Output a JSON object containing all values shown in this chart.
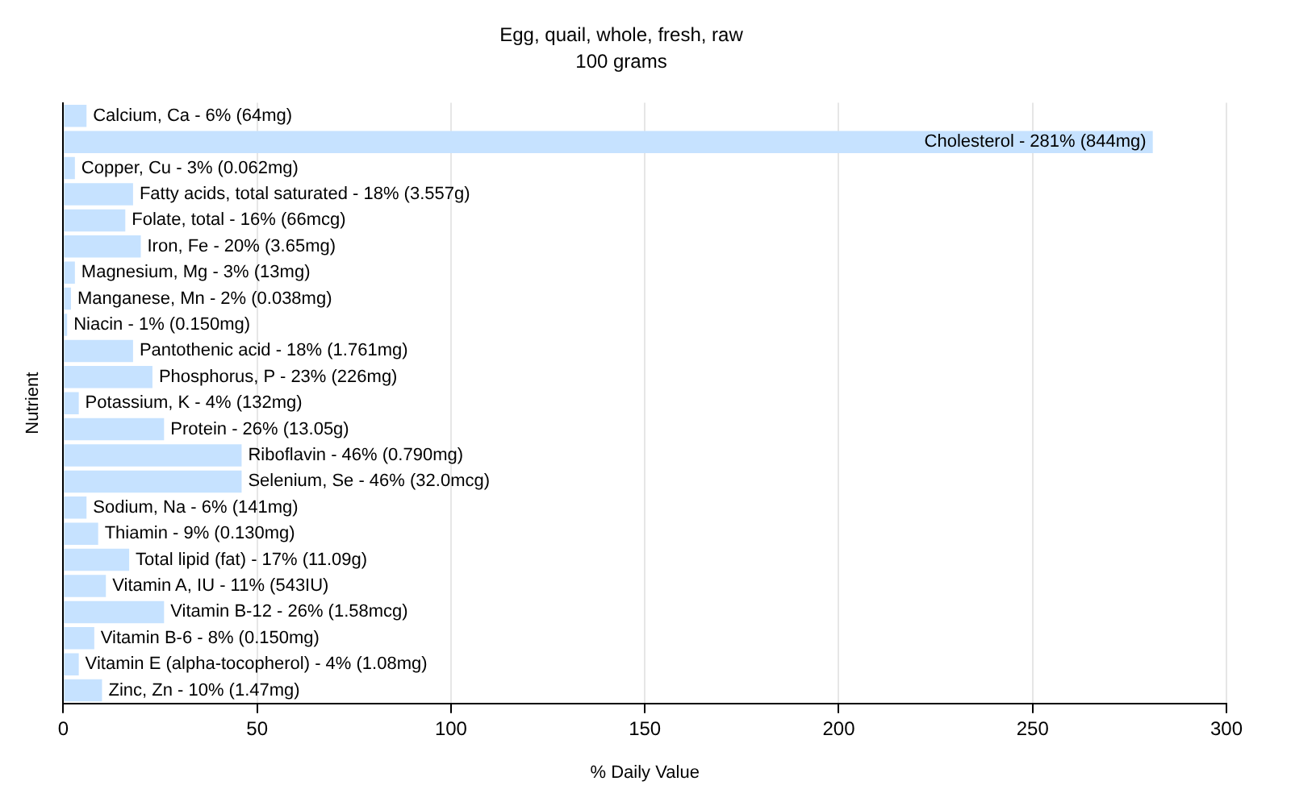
{
  "chart_data": {
    "type": "bar",
    "orientation": "horizontal",
    "title": "Egg, quail, whole, fresh, raw",
    "subtitle": "100 grams",
    "xlabel": "% Daily Value",
    "ylabel": "Nutrient",
    "categories": [
      "Calcium, Ca - 6% (64mg)",
      "Cholesterol - 281% (844mg)",
      "Copper, Cu - 3% (0.062mg)",
      "Fatty acids, total saturated - 18% (3.557g)",
      "Folate, total - 16% (66mcg)",
      "Iron, Fe - 20% (3.65mg)",
      "Magnesium, Mg - 3% (13mg)",
      "Manganese, Mn - 2% (0.038mg)",
      "Niacin - 1% (0.150mg)",
      "Pantothenic acid - 18% (1.761mg)",
      "Phosphorus, P - 23% (226mg)",
      "Potassium, K - 4% (132mg)",
      "Protein - 26% (13.05g)",
      "Riboflavin - 46% (0.790mg)",
      "Selenium, Se - 46% (32.0mcg)",
      "Sodium, Na - 6% (141mg)",
      "Thiamin - 9% (0.130mg)",
      "Total lipid (fat) - 17% (11.09g)",
      "Vitamin A, IU - 11% (543IU)",
      "Vitamin B-12 - 26% (1.58mcg)",
      "Vitamin B-6 - 8% (0.150mg)",
      "Vitamin E (alpha-tocopherol) - 4% (1.08mg)",
      "Zinc, Zn - 10% (1.47mg)"
    ],
    "values": [
      6,
      281,
      3,
      18,
      16,
      20,
      3,
      2,
      1,
      18,
      23,
      4,
      26,
      46,
      46,
      6,
      9,
      17,
      11,
      26,
      8,
      4,
      10
    ],
    "color": "#c6e2ff",
    "xlim": [
      0,
      300
    ],
    "xticks": [
      0,
      50,
      100,
      150,
      200,
      250,
      300
    ],
    "grid": "x",
    "legend": false,
    "tick_labels": "x"
  }
}
